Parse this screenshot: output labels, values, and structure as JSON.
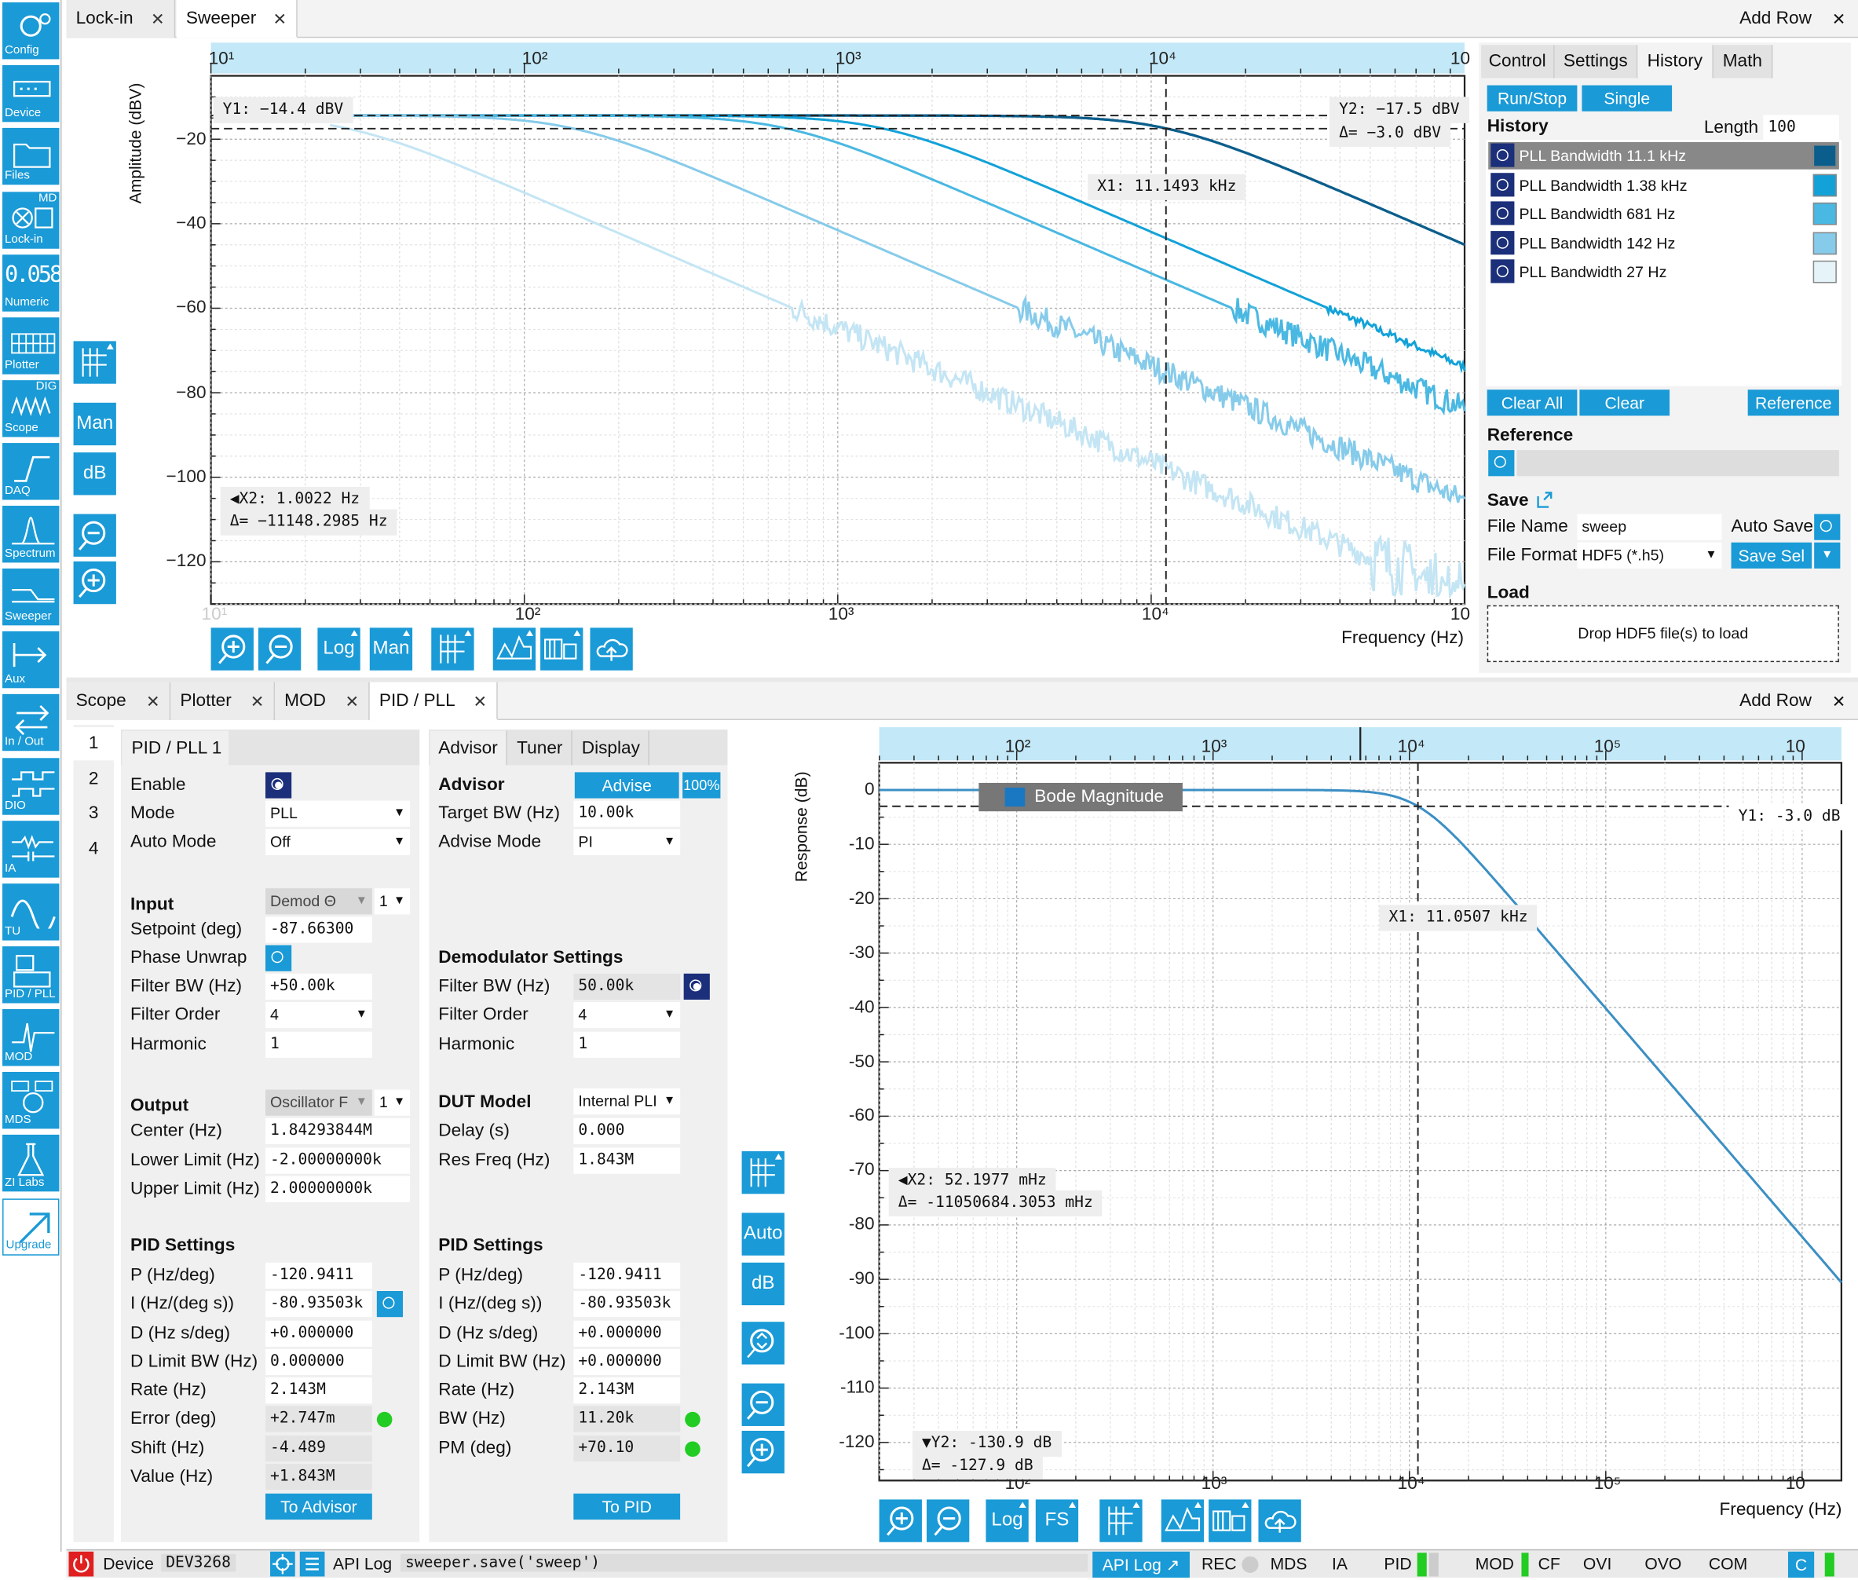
{
  "sidebar": {
    "items": [
      {
        "label": "Config",
        "icon": "gear-icon"
      },
      {
        "label": "Device",
        "icon": "device-icon"
      },
      {
        "label": "Files",
        "icon": "folder-icon"
      },
      {
        "label": "Lock-in",
        "icon": "lockin-icon",
        "tag": "MD"
      },
      {
        "label": "Numeric",
        "icon": "numeric-icon",
        "glyph": "0.058"
      },
      {
        "label": "Plotter",
        "icon": "plotter-icon"
      },
      {
        "label": "Scope",
        "icon": "scope-icon",
        "tag": "DIG"
      },
      {
        "label": "DAQ",
        "icon": "daq-icon"
      },
      {
        "label": "Spectrum",
        "icon": "spectrum-icon"
      },
      {
        "label": "Sweeper",
        "icon": "sweeper-icon"
      },
      {
        "label": "Aux",
        "icon": "aux-icon"
      },
      {
        "label": "In / Out",
        "icon": "inout-icon"
      },
      {
        "label": "DIO",
        "icon": "dio-icon"
      },
      {
        "label": "IA",
        "icon": "ia-icon"
      },
      {
        "label": "TU",
        "icon": "tu-icon"
      },
      {
        "label": "PID / PLL",
        "icon": "pid-icon"
      },
      {
        "label": "MOD",
        "icon": "mod-icon"
      },
      {
        "label": "MDS",
        "icon": "mds-icon"
      },
      {
        "label": "ZI Labs",
        "icon": "flask-icon"
      },
      {
        "label": "Upgrade",
        "icon": "upgrade-icon"
      }
    ]
  },
  "top_tabs": {
    "tabs": [
      "Lock-in",
      "Sweeper"
    ],
    "add_row": "Add Row"
  },
  "bottom_tabs": {
    "tabs": [
      "Scope",
      "Plotter",
      "MOD",
      "PID / PLL"
    ],
    "add_row": "Add Row"
  },
  "sweeper_plot": {
    "ylabel": "Amplitude (dBV)",
    "xlabel": "Frequency (Hz)",
    "y_ticks": [
      "−20",
      "−40",
      "−60",
      "−80",
      "−100",
      "−120"
    ],
    "x_ticks": [
      "10¹",
      "10²",
      "10³",
      "10⁴",
      "10"
    ],
    "x_ticks_bottom": [
      "10¹",
      "10²",
      "10³",
      "10⁴",
      "10"
    ],
    "cursor_y1": "Y1: −14.4 dBV",
    "cursor_y2": "Y2: −17.5 dBV",
    "cursor_dy": "Δ= −3.0 dBV",
    "cursor_x1": "X1: 11.1493 kHz",
    "cursor_x2": "◀X2: 1.0022 Hz",
    "cursor_dx": "Δ= −11148.2985 Hz",
    "side_buttons": {
      "man": "Man",
      "db": "dB"
    },
    "toolbar": {
      "log": "Log",
      "man": "Man"
    }
  },
  "chart_data": {
    "type": "line",
    "xscale": "log",
    "xlim": [
      10,
      100000
    ],
    "ylim": [
      -130,
      -5
    ],
    "xlabel": "Frequency (Hz)",
    "ylabel": "Amplitude (dBV)",
    "series": [
      {
        "name": "PLL Bandwidth 11.1 kHz",
        "color": "#0b5e8c",
        "fc": 11100
      },
      {
        "name": "PLL Bandwidth 1.38 kHz",
        "color": "#13a2d8",
        "fc": 1380
      },
      {
        "name": "PLL Bandwidth 681 Hz",
        "color": "#49b8e2",
        "fc": 681
      },
      {
        "name": "PLL Bandwidth 142 Hz",
        "color": "#86cbea",
        "fc": 142
      },
      {
        "name": "PLL Bandwidth 27 Hz",
        "color": "#c4e5f4",
        "fc": 27
      }
    ]
  },
  "history_panel": {
    "tabs": [
      "Control",
      "Settings",
      "History",
      "Math"
    ],
    "run_stop": "Run/Stop",
    "single": "Single",
    "history_title": "History",
    "length_label": "Length",
    "length_value": "100",
    "rows": [
      {
        "label": "PLL Bandwidth  11.1 kHz",
        "color": "#0b5e8c"
      },
      {
        "label": "PLL Bandwidth  1.38 kHz",
        "color": "#13a2d8"
      },
      {
        "label": "PLL Bandwidth   681 Hz",
        "color": "#49b8e2"
      },
      {
        "label": "PLL Bandwidth   142 Hz",
        "color": "#86cbea"
      },
      {
        "label": "PLL Bandwidth    27 Hz",
        "color": "#e6f4fa"
      }
    ],
    "clear_all": "Clear All",
    "clear": "Clear",
    "reference_btn": "Reference",
    "reference_title": "Reference",
    "save_title": "Save",
    "file_name_label": "File Name",
    "file_name_value": "sweep",
    "auto_save_label": "Auto Save",
    "file_format_label": "File Format",
    "file_format_value": "HDF5 (*.h5)",
    "save_sel": "Save Sel",
    "load_title": "Load",
    "drop_text": "Drop HDF5 file(s) to load"
  },
  "pid_panel": {
    "numbers": [
      "1",
      "2",
      "3",
      "4"
    ],
    "subtab": "PID / PLL 1",
    "enable_label": "Enable",
    "mode_label": "Mode",
    "mode_value": "PLL",
    "auto_mode_label": "Auto Mode",
    "auto_mode_value": "Off",
    "input_title": "Input",
    "input_value": "Demod Θ",
    "input_index": "1",
    "setpoint_label": "Setpoint (deg)",
    "setpoint_value": "-87.66300",
    "phase_unwrap_label": "Phase Unwrap",
    "filter_bw_label": "Filter BW (Hz)",
    "filter_bw_value": "+50.00k",
    "filter_order_label": "Filter Order",
    "filter_order_value": "4",
    "harmonic_label": "Harmonic",
    "harmonic_value": "1",
    "output_title": "Output",
    "output_value": "Oscillator F",
    "output_index": "1",
    "center_label": "Center (Hz)",
    "center_value": "1.84293844M",
    "lower_label": "Lower Limit (Hz)",
    "lower_value": "-2.00000000k",
    "upper_label": "Upper Limit (Hz)",
    "upper_value": "2.00000000k",
    "pid_title": "PID Settings",
    "p_label": "P (Hz/deg)",
    "p_value": "-120.9411",
    "i_label": "I (Hz/(deg s))",
    "i_value": "-80.93503k",
    "d_label": "D (Hz s/deg)",
    "d_value": "+0.000000",
    "dlim_label": "D Limit BW (Hz)",
    "dlim_value": "0.000000",
    "rate_label": "Rate (Hz)",
    "rate_value": "2.143M",
    "error_label": "Error (deg)",
    "error_value": "+2.747m",
    "shift_label": "Shift (Hz)",
    "shift_value": "-4.489",
    "value_label": "Value (Hz)",
    "value_value": "+1.843M",
    "to_advisor": "To Advisor"
  },
  "advisor_panel": {
    "tabs": [
      "Advisor",
      "Tuner",
      "Display"
    ],
    "advisor_title": "Advisor",
    "advise_btn": "Advise",
    "pct": "100%",
    "target_bw_label": "Target BW (Hz)",
    "target_bw_value": "10.00k",
    "advise_mode_label": "Advise Mode",
    "advise_mode_value": "PI",
    "demod_title": "Demodulator Settings",
    "filter_bw_label": "Filter BW (Hz)",
    "filter_bw_value": "50.00k",
    "filter_order_label": "Filter Order",
    "filter_order_value": "4",
    "harmonic_label": "Harmonic",
    "harmonic_value": "1",
    "dut_title": "DUT Model",
    "dut_value": "Internal PLI",
    "delay_label": "Delay (s)",
    "delay_value": "0.000",
    "res_label": "Res Freq (Hz)",
    "res_value": "1.843M",
    "pid_title": "PID Settings",
    "p_label": "P (Hz/deg)",
    "p_value": "-120.9411",
    "i_label": "I (Hz/(deg s))",
    "i_value": "-80.93503k",
    "d_label": "D (Hz s/deg)",
    "d_value": "+0.000000",
    "dlim_label": "D Limit BW (Hz)",
    "dlim_value": "+0.000000",
    "rate_label": "Rate (Hz)",
    "rate_value": "2.143M",
    "bw_label": "BW (Hz)",
    "bw_value": "11.20k",
    "pm_label": "PM (deg)",
    "pm_value": "+70.10",
    "to_pid": "To PID"
  },
  "bode_plot": {
    "ylabel": "Response (dB)",
    "xlabel": "Frequency (Hz)",
    "legend": "Bode Magnitude",
    "y_ticks": [
      "0",
      "-10",
      "-20",
      "-30",
      "-40",
      "-50",
      "-60",
      "-70",
      "-80",
      "-90",
      "-100",
      "-110",
      "-120"
    ],
    "x_ticks": [
      "10²",
      "10³",
      "10⁴",
      "10⁵",
      "10"
    ],
    "cursor_y1": "Y1: -3.0 dB",
    "cursor_x1": "X1: 11.0507 kHz",
    "cursor_x2": "◀X2: 52.1977 mHz",
    "cursor_dx": "Δ= -11050684.3053 mHz",
    "cursor_y2": "▼Y2: -130.9 dB",
    "cursor_dy": "Δ= -127.9 dB",
    "side_buttons": {
      "auto": "Auto",
      "db": "dB"
    },
    "toolbar": {
      "log": "Log",
      "fs": "FS"
    }
  },
  "status_bar": {
    "device_label": "Device",
    "device_value": "DEV3268",
    "api_log": "API Log",
    "api_cmd": "sweeper.save('sweep')",
    "api_log_btn": "API Log",
    "rec": "REC",
    "mds": "MDS",
    "ia": "IA",
    "pid": "PID",
    "mod": "MOD",
    "cf": "CF",
    "ovi": "OVI",
    "ovo": "OVO",
    "com": "COM",
    "c": "C"
  }
}
